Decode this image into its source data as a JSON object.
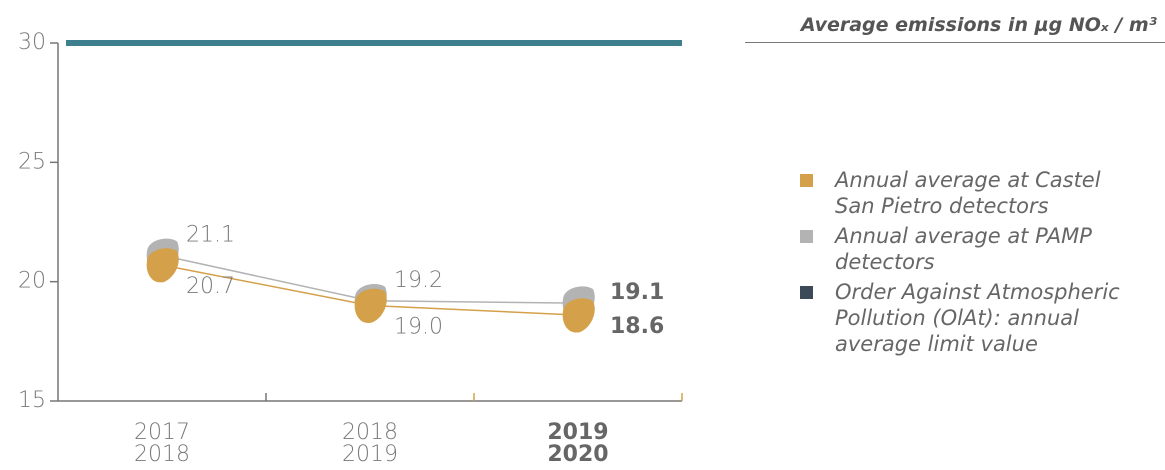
{
  "chart_data": {
    "type": "line",
    "title": "Average emissions in µg NOₓ / m³",
    "categories": [
      "2017\n2018",
      "2018\n2019",
      "2019\n2020"
    ],
    "highlight_index": 2,
    "series": [
      {
        "name": "Annual average at Castel San Pietro detectors",
        "color": "#d4a04a",
        "markers": true,
        "label_side": "below",
        "values": [
          20.7,
          19.0,
          18.6
        ],
        "value_labels": [
          "20.7",
          "19.0",
          "18.6"
        ]
      },
      {
        "name": "Annual average at PAMP detectors",
        "color": "#b3b3b3",
        "markers": true,
        "label_side": "above",
        "values": [
          21.1,
          19.2,
          19.1
        ]
      },
      {
        "name": "Order Against Atmospheric Pollution (OlAt): annual average limit value",
        "color": "#3d7f8c",
        "legend_color": "#3c4a57",
        "markers": false,
        "values": [
          30,
          30,
          30
        ]
      }
    ],
    "ylim": [
      15,
      30
    ],
    "yticks": [
      15,
      20,
      25,
      30
    ],
    "grid": false
  }
}
